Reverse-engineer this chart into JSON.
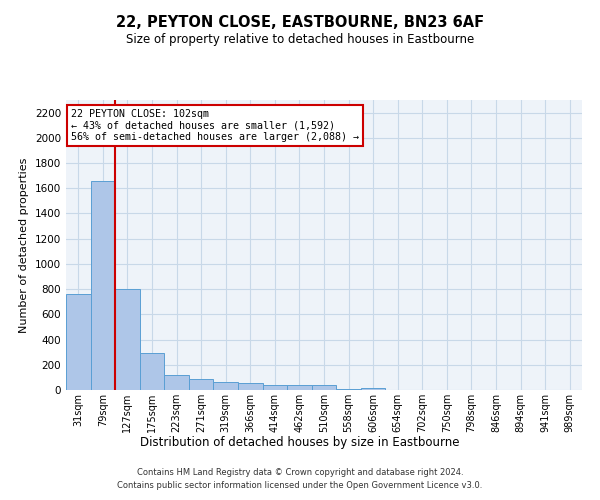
{
  "title": "22, PEYTON CLOSE, EASTBOURNE, BN23 6AF",
  "subtitle": "Size of property relative to detached houses in Eastbourne",
  "xlabel": "Distribution of detached houses by size in Eastbourne",
  "ylabel": "Number of detached properties",
  "footnote1": "Contains HM Land Registry data © Crown copyright and database right 2024.",
  "footnote2": "Contains public sector information licensed under the Open Government Licence v3.0.",
  "bar_color": "#aec6e8",
  "bar_edge_color": "#5a9fd4",
  "grid_color": "#c8d8e8",
  "background_color": "#eef3f9",
  "annotation_box_color": "#cc0000",
  "annotation_line_color": "#cc0000",
  "property_label": "22 PEYTON CLOSE: 102sqm",
  "annotation_line1": "← 43% of detached houses are smaller (1,592)",
  "annotation_line2": "56% of semi-detached houses are larger (2,088) →",
  "categories": [
    "31sqm",
    "79sqm",
    "127sqm",
    "175sqm",
    "223sqm",
    "271sqm",
    "319sqm",
    "366sqm",
    "414sqm",
    "462sqm",
    "510sqm",
    "558sqm",
    "606sqm",
    "654sqm",
    "702sqm",
    "750sqm",
    "798sqm",
    "846sqm",
    "894sqm",
    "941sqm",
    "989sqm"
  ],
  "values": [
    760,
    1660,
    800,
    290,
    120,
    85,
    62,
    55,
    42,
    38,
    37,
    5,
    17,
    0,
    0,
    0,
    0,
    0,
    0,
    0,
    0
  ],
  "ylim": [
    0,
    2300
  ],
  "yticks": [
    0,
    200,
    400,
    600,
    800,
    1000,
    1200,
    1400,
    1600,
    1800,
    2000,
    2200
  ],
  "vline_x": 1.5
}
